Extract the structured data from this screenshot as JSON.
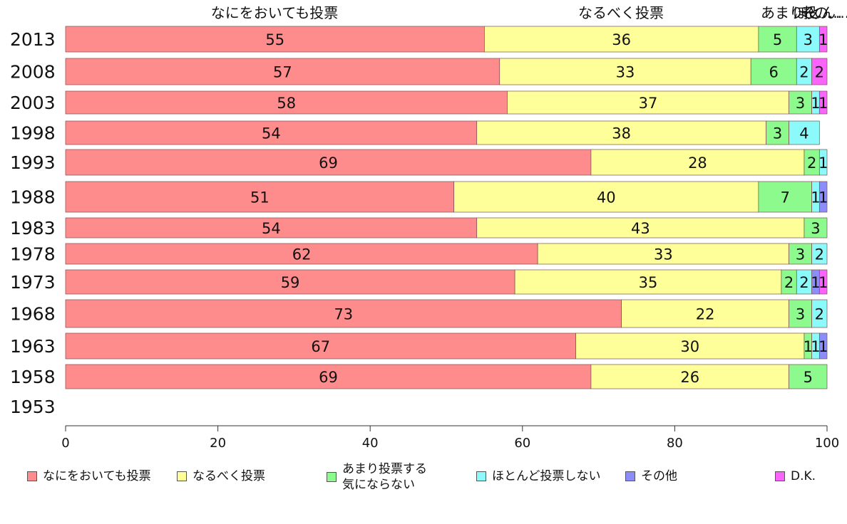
{
  "chart_data": {
    "type": "bar",
    "orientation": "horizontal",
    "stacked": true,
    "categories": [
      "2013",
      "2008",
      "2003",
      "1998",
      "1993",
      "1988",
      "1983",
      "1978",
      "1973",
      "1968",
      "1963",
      "1958",
      "1953"
    ],
    "series": [
      {
        "name": "なにをおいても投票",
        "color": "#ff8c8c",
        "values": [
          55,
          57,
          58,
          54,
          69,
          51,
          54,
          62,
          59,
          73,
          67,
          69,
          null
        ]
      },
      {
        "name": "なるべく投票",
        "color": "#ffff99",
        "values": [
          36,
          33,
          37,
          38,
          28,
          40,
          43,
          33,
          35,
          22,
          30,
          26,
          null
        ]
      },
      {
        "name": "あまり投票する\n気にならない",
        "color": "#8cfa8c",
        "values": [
          5,
          6,
          3,
          3,
          2,
          7,
          3,
          3,
          2,
          3,
          1,
          5,
          null
        ]
      },
      {
        "name": "ほとんど投票しない",
        "color": "#8cfafa",
        "values": [
          3,
          2,
          1,
          4,
          1,
          1,
          0,
          2,
          2,
          2,
          1,
          0,
          null
        ]
      },
      {
        "name": "その他",
        "color": "#8c8cfa",
        "values": [
          0,
          0,
          0,
          0,
          0,
          1,
          0,
          0,
          1,
          0,
          1,
          0,
          null
        ]
      },
      {
        "name": "D.K.",
        "color": "#fa64fa",
        "values": [
          1,
          2,
          1,
          0,
          0,
          0,
          0,
          0,
          1,
          0,
          0,
          0,
          null
        ]
      }
    ],
    "top_labels": [
      "なにをおいても投票",
      "なるべく投票",
      "あまり投...",
      "ほとん...",
      "その..."
    ],
    "xlim": [
      0,
      100
    ],
    "xticks": [
      0,
      20,
      40,
      60,
      80,
      100
    ],
    "grid": false,
    "legend_position": "bottom"
  }
}
